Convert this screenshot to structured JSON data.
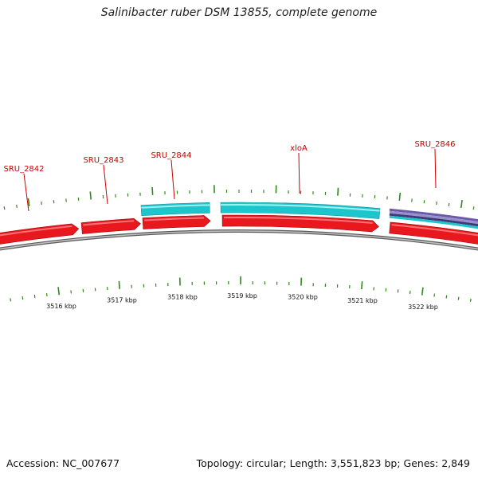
{
  "header": {
    "title": "Salinibacter ruber DSM 13855, complete genome"
  },
  "footer": {
    "accession": "Accession: NC_007677",
    "summary": "Topology: circular; Length: 3,551,823 bp; Genes: 2,849"
  },
  "colors": {
    "forward_gene": "#e8181e",
    "forward_gene_highlight": "#ff8a8a",
    "rna_feature": "#1cc6cc",
    "rna_feature_highlight": "#b0f4f6",
    "purple_feature": "#6a5aa8",
    "backbone": "#8c8c8c",
    "tick": "#2e8b1a",
    "label_text": "#cc0000",
    "label_line": "#cc0000"
  },
  "gene_labels": [
    {
      "name": "SRU_2842"
    },
    {
      "name": "SRU_2843"
    },
    {
      "name": "SRU_2844"
    },
    {
      "name": "xloA"
    },
    {
      "name": "SRU_2846"
    }
  ],
  "kbp_ticks": [
    {
      "label": "3516 kbp"
    },
    {
      "label": "3517 kbp"
    },
    {
      "label": "3518 kbp"
    },
    {
      "label": "3519 kbp"
    },
    {
      "label": "3520 kbp"
    },
    {
      "label": "3521 kbp"
    },
    {
      "label": "3522 kbp"
    }
  ]
}
